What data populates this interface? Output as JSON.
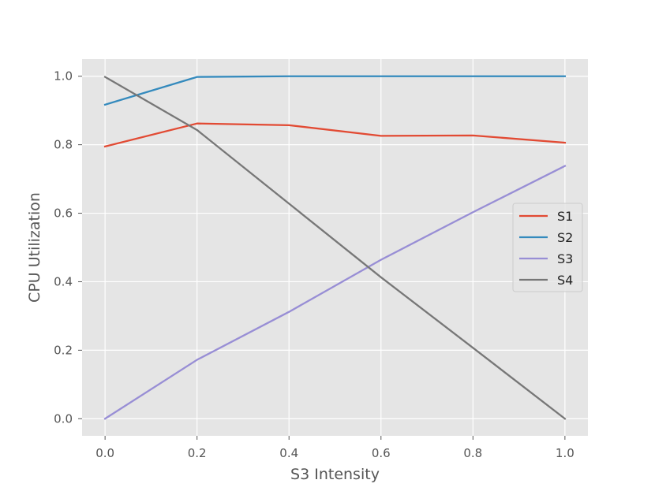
{
  "chart_data": {
    "type": "line",
    "title": "",
    "xlabel": "S3 Intensity",
    "ylabel": "CPU Utilization",
    "x": [
      0.0,
      0.2,
      0.4,
      0.6,
      0.8,
      1.0
    ],
    "xlim": [
      -0.05,
      1.05
    ],
    "ylim": [
      -0.05,
      1.05
    ],
    "xticks": [
      "0.0",
      "0.2",
      "0.4",
      "0.6",
      "0.8",
      "1.0"
    ],
    "yticks": [
      "0.0",
      "0.2",
      "0.4",
      "0.6",
      "0.8",
      "1.0"
    ],
    "grid": true,
    "legend_position": "right",
    "background_color": "#e5e5e5",
    "series": [
      {
        "name": "S1",
        "color": "#e24a33",
        "values": [
          0.795,
          0.862,
          0.857,
          0.826,
          0.827,
          0.806
        ]
      },
      {
        "name": "S2",
        "color": "#348abd",
        "values": [
          0.917,
          0.998,
          1.0,
          1.0,
          1.0,
          1.0
        ]
      },
      {
        "name": "S3",
        "color": "#988ed5",
        "values": [
          0.0,
          0.172,
          0.312,
          0.464,
          0.603,
          0.738
        ]
      },
      {
        "name": "S4",
        "color": "#777777",
        "values": [
          0.998,
          0.843,
          0.628,
          0.413,
          0.207,
          0.0
        ]
      }
    ]
  }
}
